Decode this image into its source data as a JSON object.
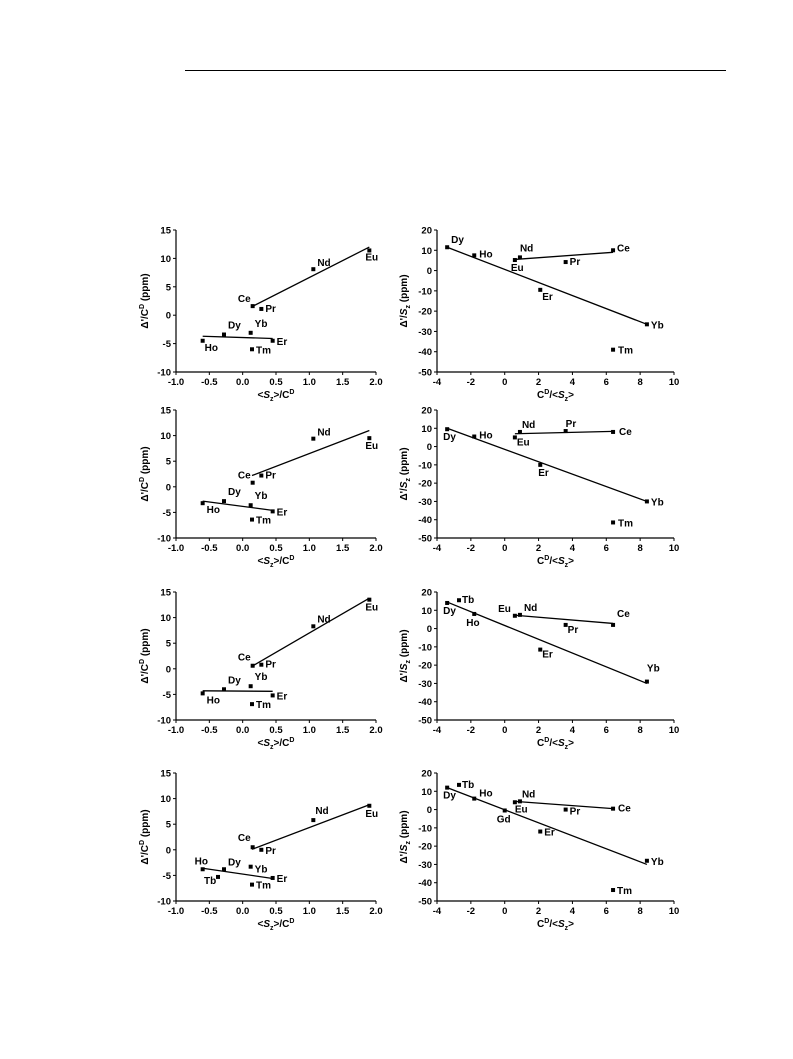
{
  "chart_data": [
    {
      "type": "scatter",
      "xlim": [
        -1.0,
        2.0
      ],
      "ylim": [
        -10,
        15
      ],
      "xticks": [
        "-1.0",
        "-0.5",
        "0.0",
        "0.5",
        "1.0",
        "1.5",
        "2.0"
      ],
      "yticks": [
        "-10",
        "-5",
        "0",
        "5",
        "10",
        "15"
      ],
      "xlabel": "<Sz>/CD",
      "ylabel": "Δ'/CD (ppm)",
      "points": [
        {
          "label": "Ho",
          "x": -0.6,
          "y": -4.5
        },
        {
          "label": "Dy",
          "x": -0.28,
          "y": -3.4
        },
        {
          "label": "Yb",
          "x": 0.12,
          "y": -3.1
        },
        {
          "label": "Er",
          "x": 0.45,
          "y": -4.5
        },
        {
          "label": "Tm",
          "x": 0.14,
          "y": -6.0
        },
        {
          "label": "Ce",
          "x": 0.15,
          "y": 1.6
        },
        {
          "label": "Pr",
          "x": 0.28,
          "y": 1.1
        },
        {
          "label": "Nd",
          "x": 1.06,
          "y": 8.1
        },
        {
          "label": "Eu",
          "x": 1.9,
          "y": 11.4
        }
      ],
      "fit_lines": [
        {
          "x": [
            -0.6,
            0.45
          ],
          "y": [
            -3.7,
            -4.1
          ]
        },
        {
          "x": [
            0.14,
            1.9
          ],
          "y": [
            1.5,
            12.0
          ]
        }
      ]
    },
    {
      "type": "scatter",
      "xlim": [
        -4,
        10
      ],
      "ylim": [
        -50,
        20
      ],
      "xticks": [
        "-4",
        "-2",
        "0",
        "2",
        "4",
        "6",
        "8",
        "10"
      ],
      "yticks": [
        "-50",
        "-40",
        "-30",
        "-20",
        "-10",
        "0",
        "10",
        "20"
      ],
      "xlabel": "CD/<Sz>",
      "ylabel": "Δ'/Sz (ppm)",
      "points": [
        {
          "label": "Dy",
          "x": -3.4,
          "y": 11.5
        },
        {
          "label": "Ho",
          "x": -1.8,
          "y": 7.5
        },
        {
          "label": "Nd",
          "x": 0.9,
          "y": 6.5
        },
        {
          "label": "Eu",
          "x": 0.6,
          "y": 5.2
        },
        {
          "label": "Pr",
          "x": 3.6,
          "y": 4.2
        },
        {
          "label": "Ce",
          "x": 6.4,
          "y": 10.0
        },
        {
          "label": "Er",
          "x": 2.1,
          "y": -9.5
        },
        {
          "label": "Yb",
          "x": 8.4,
          "y": -26.5
        },
        {
          "label": "Tm",
          "x": 6.4,
          "y": -39.0
        }
      ],
      "fit_lines": [
        {
          "x": [
            -3.4,
            8.4
          ],
          "y": [
            11.5,
            -26.5
          ]
        },
        {
          "x": [
            0.6,
            6.4
          ],
          "y": [
            5.5,
            9.0
          ]
        }
      ]
    },
    {
      "type": "scatter",
      "xlim": [
        -1.0,
        2.0
      ],
      "ylim": [
        -10,
        15
      ],
      "xticks": [
        "-1.0",
        "-0.5",
        "0.0",
        "0.5",
        "1.0",
        "1.5",
        "2.0"
      ],
      "yticks": [
        "-10",
        "-5",
        "0",
        "5",
        "10",
        "15"
      ],
      "xlabel": "<Sz>/CD",
      "ylabel": "Δ'/CD (ppm)",
      "points": [
        {
          "label": "Ho",
          "x": -0.6,
          "y": -3.2
        },
        {
          "label": "Dy",
          "x": -0.28,
          "y": -2.8
        },
        {
          "label": "Yb",
          "x": 0.12,
          "y": -3.6
        },
        {
          "label": "Er",
          "x": 0.45,
          "y": -4.8
        },
        {
          "label": "Tm",
          "x": 0.14,
          "y": -6.4
        },
        {
          "label": "Ce",
          "x": 0.15,
          "y": 0.8
        },
        {
          "label": "Pr",
          "x": 0.28,
          "y": 2.2
        },
        {
          "label": "Nd",
          "x": 1.06,
          "y": 9.4
        },
        {
          "label": "Eu",
          "x": 1.9,
          "y": 9.5
        }
      ],
      "fit_lines": [
        {
          "x": [
            -0.6,
            0.45
          ],
          "y": [
            -2.8,
            -4.6
          ]
        },
        {
          "x": [
            0.14,
            1.9
          ],
          "y": [
            2.2,
            11.0
          ]
        }
      ]
    },
    {
      "type": "scatter",
      "xlim": [
        -4,
        10
      ],
      "ylim": [
        -50,
        20
      ],
      "xticks": [
        "-4",
        "-2",
        "0",
        "2",
        "4",
        "6",
        "8",
        "10"
      ],
      "yticks": [
        "-50",
        "-40",
        "-30",
        "-20",
        "-10",
        "0",
        "10",
        "20"
      ],
      "xlabel": "CD/<Sz>",
      "ylabel": "Δ'/Sz (ppm)",
      "points": [
        {
          "label": "Dy",
          "x": -3.4,
          "y": 9.5
        },
        {
          "label": "Ho",
          "x": -1.8,
          "y": 5.5
        },
        {
          "label": "Nd",
          "x": 0.9,
          "y": 8.0
        },
        {
          "label": "Eu",
          "x": 0.6,
          "y": 5.0
        },
        {
          "label": "Pr",
          "x": 3.6,
          "y": 8.5
        },
        {
          "label": "Ce",
          "x": 6.4,
          "y": 8.0
        },
        {
          "label": "Er",
          "x": 2.1,
          "y": -10.0
        },
        {
          "label": "Yb",
          "x": 8.4,
          "y": -30.0
        },
        {
          "label": "Tm",
          "x": 6.4,
          "y": -41.5
        }
      ],
      "fit_lines": [
        {
          "x": [
            -3.4,
            8.4
          ],
          "y": [
            10.0,
            -30.0
          ]
        },
        {
          "x": [
            0.6,
            6.4
          ],
          "y": [
            7.0,
            8.3
          ]
        }
      ]
    },
    {
      "type": "scatter",
      "xlim": [
        -1.0,
        2.0
      ],
      "ylim": [
        -10,
        15
      ],
      "xticks": [
        "-1.0",
        "-0.5",
        "0.0",
        "0.5",
        "1.0",
        "1.5",
        "2.0"
      ],
      "yticks": [
        "-10",
        "-5",
        "0",
        "5",
        "10",
        "15"
      ],
      "xlabel": "<Sz>/CD",
      "ylabel": "Δ'/CD (ppm)",
      "points": [
        {
          "label": "Ho",
          "x": -0.6,
          "y": -4.8
        },
        {
          "label": "Dy",
          "x": -0.28,
          "y": -4.0
        },
        {
          "label": "Yb",
          "x": 0.12,
          "y": -3.4
        },
        {
          "label": "Er",
          "x": 0.45,
          "y": -5.2
        },
        {
          "label": "Tm",
          "x": 0.14,
          "y": -6.9
        },
        {
          "label": "Ce",
          "x": 0.15,
          "y": 0.6
        },
        {
          "label": "Pr",
          "x": 0.28,
          "y": 0.8
        },
        {
          "label": "Nd",
          "x": 1.06,
          "y": 8.3
        },
        {
          "label": "Eu",
          "x": 1.9,
          "y": 13.5
        }
      ],
      "fit_lines": [
        {
          "x": [
            -0.6,
            0.45
          ],
          "y": [
            -4.3,
            -4.4
          ]
        },
        {
          "x": [
            0.14,
            1.9
          ],
          "y": [
            0.5,
            13.8
          ]
        }
      ]
    },
    {
      "type": "scatter",
      "xlim": [
        -4,
        10
      ],
      "ylim": [
        -50,
        20
      ],
      "xticks": [
        "-4",
        "-2",
        "0",
        "2",
        "4",
        "6",
        "8",
        "10"
      ],
      "yticks": [
        "-50",
        "-40",
        "-30",
        "-20",
        "-10",
        "0",
        "10",
        "20"
      ],
      "xlabel": "CD/<Sz>",
      "ylabel": "Δ'/Sz (ppm)",
      "points": [
        {
          "label": "Dy",
          "x": -3.4,
          "y": 14.0
        },
        {
          "label": "Tb",
          "x": -2.7,
          "y": 15.5
        },
        {
          "label": "Ho",
          "x": -1.8,
          "y": 8.0
        },
        {
          "label": "Eu",
          "x": 0.6,
          "y": 7.0
        },
        {
          "label": "Nd",
          "x": 0.9,
          "y": 7.5
        },
        {
          "label": "Pr",
          "x": 3.6,
          "y": 2.0
        },
        {
          "label": "Ce",
          "x": 6.4,
          "y": 2.0
        },
        {
          "label": "Er",
          "x": 2.1,
          "y": -11.5
        },
        {
          "label": "Yb",
          "x": 8.4,
          "y": -29.0
        }
      ],
      "fit_lines": [
        {
          "x": [
            -3.4,
            8.4
          ],
          "y": [
            14.5,
            -30.0
          ]
        },
        {
          "x": [
            0.6,
            6.4
          ],
          "y": [
            7.3,
            2.8
          ]
        }
      ]
    },
    {
      "type": "scatter",
      "xlim": [
        -1.0,
        2.0
      ],
      "ylim": [
        -10,
        15
      ],
      "xticks": [
        "-1.0",
        "-0.5",
        "0.0",
        "0.5",
        "1.0",
        "1.5",
        "2.0"
      ],
      "yticks": [
        "-10",
        "-5",
        "0",
        "5",
        "10",
        "15"
      ],
      "xlabel": "<Sz>/CD",
      "ylabel": "Δ'/CD (ppm)",
      "points": [
        {
          "label": "Ho",
          "x": -0.6,
          "y": -3.8
        },
        {
          "label": "Tb",
          "x": -0.37,
          "y": -5.3
        },
        {
          "label": "Dy",
          "x": -0.28,
          "y": -3.8
        },
        {
          "label": "Yb",
          "x": 0.12,
          "y": -3.3
        },
        {
          "label": "Er",
          "x": 0.45,
          "y": -5.5
        },
        {
          "label": "Tm",
          "x": 0.14,
          "y": -6.8
        },
        {
          "label": "Ce",
          "x": 0.15,
          "y": 0.5
        },
        {
          "label": "Pr",
          "x": 0.28,
          "y": 0.0
        },
        {
          "label": "Nd",
          "x": 1.06,
          "y": 5.8
        },
        {
          "label": "Eu",
          "x": 1.9,
          "y": 8.6
        }
      ],
      "fit_lines": [
        {
          "x": [
            -0.6,
            0.45
          ],
          "y": [
            -3.6,
            -5.6
          ]
        },
        {
          "x": [
            0.14,
            1.9
          ],
          "y": [
            0.1,
            8.8
          ]
        }
      ]
    },
    {
      "type": "scatter",
      "xlim": [
        -4,
        10
      ],
      "ylim": [
        -50,
        20
      ],
      "xticks": [
        "-4",
        "-2",
        "0",
        "2",
        "4",
        "6",
        "8",
        "10"
      ],
      "yticks": [
        "-50",
        "-40",
        "-30",
        "-20",
        "-10",
        "0",
        "10",
        "20"
      ],
      "xlabel": "CD/<Sz>",
      "ylabel": "Δ'/Sz (ppm)",
      "points": [
        {
          "label": "Dy",
          "x": -3.4,
          "y": 12.0
        },
        {
          "label": "Tb",
          "x": -2.7,
          "y": 13.5
        },
        {
          "label": "Ho",
          "x": -1.8,
          "y": 6.0
        },
        {
          "label": "Gd",
          "x": 0.0,
          "y": -0.5
        },
        {
          "label": "Eu",
          "x": 0.6,
          "y": 4.0
        },
        {
          "label": "Nd",
          "x": 0.9,
          "y": 4.5
        },
        {
          "label": "Pr",
          "x": 3.6,
          "y": 0.0
        },
        {
          "label": "Ce",
          "x": 6.4,
          "y": 0.5
        },
        {
          "label": "Er",
          "x": 2.1,
          "y": -12.0
        },
        {
          "label": "Yb",
          "x": 8.4,
          "y": -28.0
        },
        {
          "label": "Tm",
          "x": 6.4,
          "y": -44.0
        }
      ],
      "fit_lines": [
        {
          "x": [
            -3.4,
            8.4
          ],
          "y": [
            12.0,
            -30.0
          ]
        },
        {
          "x": [
            0.6,
            6.4
          ],
          "y": [
            4.5,
            0.5
          ]
        }
      ]
    }
  ]
}
